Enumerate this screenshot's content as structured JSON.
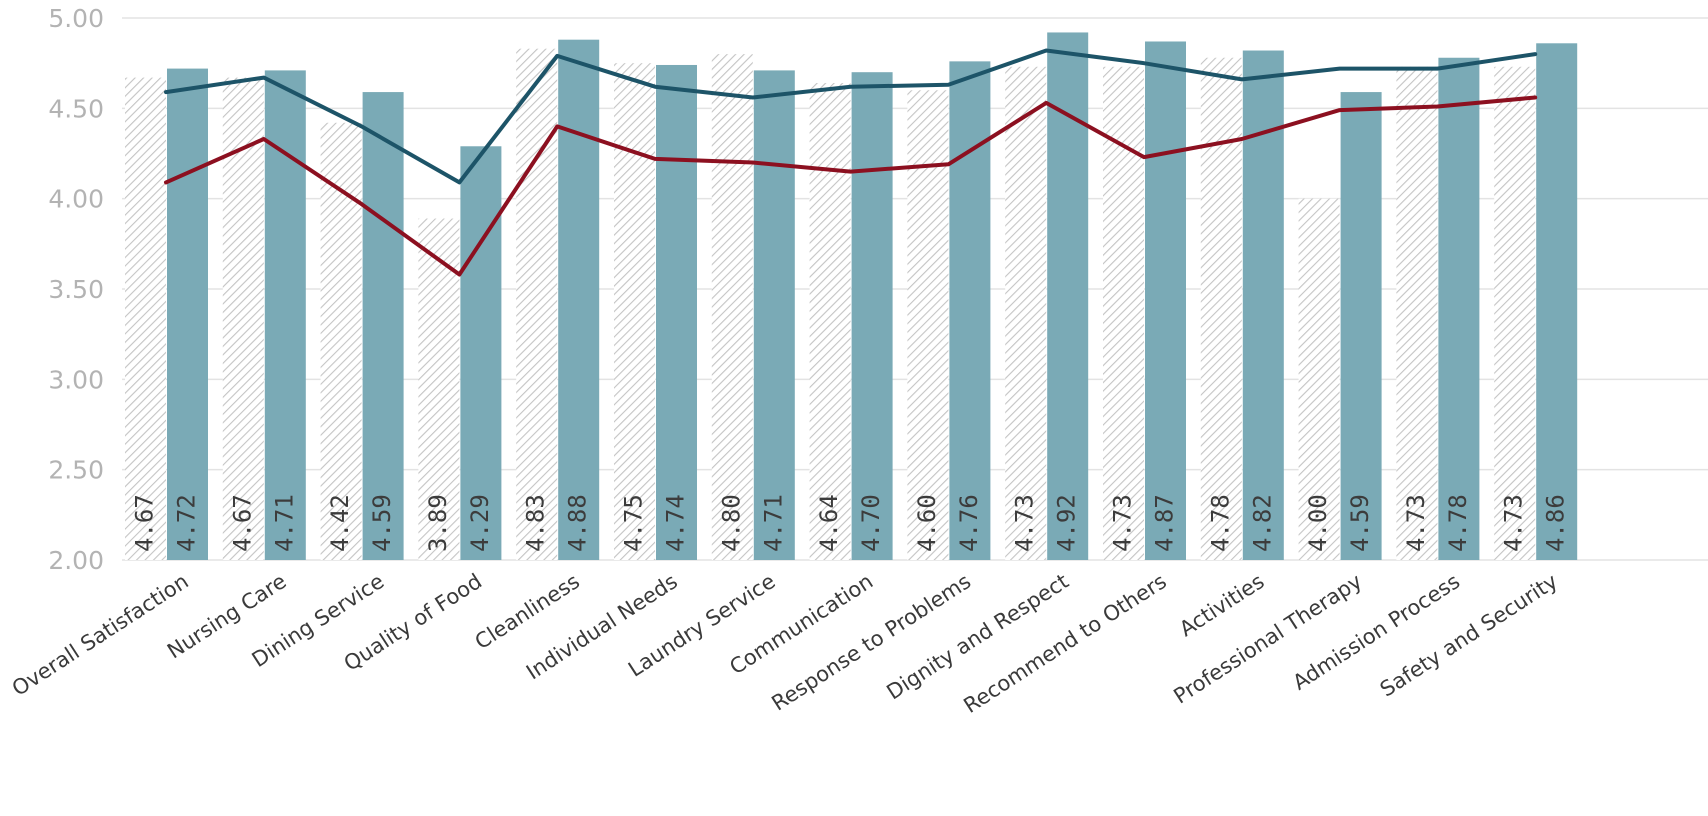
{
  "chart_data": {
    "type": "bar",
    "categories": [
      "Overall Satisfaction",
      "Nursing Care",
      "Dining Service",
      "Quality of Food",
      "Cleanliness",
      "Individual Needs",
      "Laundry Service",
      "Communication",
      "Response to Problems",
      "Dignity and Respect",
      "Recommend to Others",
      "Activities",
      "Professional Therapy",
      "Admission Process",
      "Safety and Security"
    ],
    "series": [
      {
        "type": "bar",
        "pattern": "hatched",
        "color": "#c8c8c8",
        "values": [
          4.67,
          4.67,
          4.42,
          3.89,
          4.83,
          4.75,
          4.8,
          4.64,
          4.6,
          4.73,
          4.73,
          4.78,
          4.0,
          4.73,
          4.73
        ]
      },
      {
        "type": "bar",
        "pattern": "solid",
        "color": "#7aaab6",
        "values": [
          4.72,
          4.71,
          4.59,
          4.29,
          4.88,
          4.74,
          4.71,
          4.7,
          4.76,
          4.92,
          4.87,
          4.82,
          4.59,
          4.78,
          4.86
        ]
      },
      {
        "type": "line",
        "color": "#1d5468",
        "values": [
          4.59,
          4.67,
          4.4,
          4.09,
          4.79,
          4.62,
          4.56,
          4.62,
          4.63,
          4.82,
          4.75,
          4.66,
          4.72,
          4.72,
          4.8
        ]
      },
      {
        "type": "line",
        "color": "#8c1020",
        "values": [
          4.09,
          4.33,
          3.97,
          3.58,
          4.4,
          4.22,
          4.2,
          4.15,
          4.19,
          4.53,
          4.23,
          4.33,
          4.49,
          4.51,
          4.56
        ]
      }
    ],
    "bar_labels": [
      [
        "4.67",
        "4.67",
        "4.42",
        "3.89",
        "4.83",
        "4.75",
        "4.80",
        "4.64",
        "4.60",
        "4.73",
        "4.73",
        "4.78",
        "4.00",
        "4.73",
        "4.73"
      ],
      [
        "4.72",
        "4.71",
        "4.59",
        "4.29",
        "4.88",
        "4.74",
        "4.71",
        "4.70",
        "4.76",
        "4.92",
        "4.87",
        "4.82",
        "4.59",
        "4.78",
        "4.86"
      ]
    ],
    "yticks": [
      "2.00",
      "2.50",
      "3.00",
      "3.50",
      "4.00",
      "4.50",
      "5.00"
    ],
    "ylim": [
      2.0,
      5.0
    ],
    "grid": true,
    "legend": "none"
  }
}
